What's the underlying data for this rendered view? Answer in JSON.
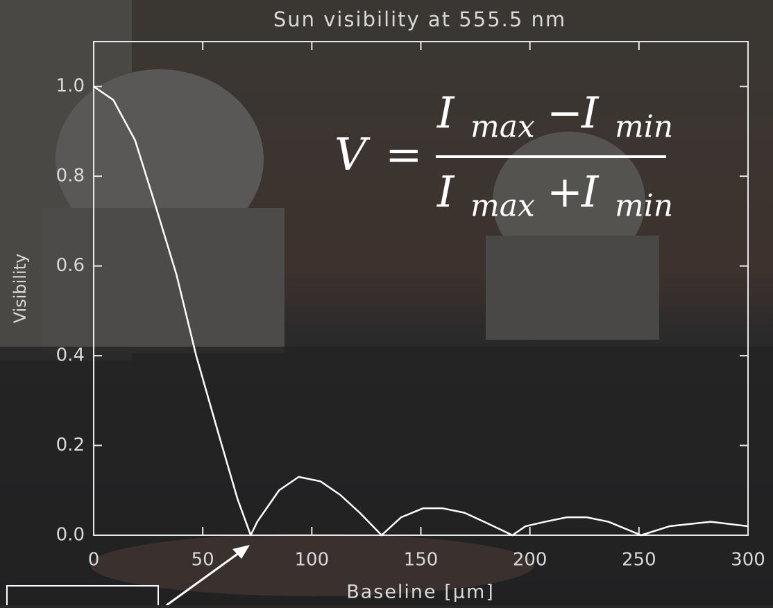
{
  "chart_data": {
    "type": "line",
    "title": "Sun visibility at 555.5 nm",
    "x_label": "Baseline [μm]",
    "y_label": "Visibility",
    "x": [
      0,
      9,
      19,
      28,
      38,
      47,
      57,
      66,
      72,
      75,
      85,
      94,
      104,
      113,
      122,
      132,
      141,
      151,
      160,
      170,
      179,
      192,
      198,
      207,
      217,
      226,
      236,
      251,
      264,
      283,
      300
    ],
    "series": [
      {
        "name": "Visibility",
        "color": "#ffffff",
        "values": [
          1.0,
          0.97,
          0.88,
          0.74,
          0.58,
          0.4,
          0.23,
          0.08,
          0.0,
          0.03,
          0.1,
          0.13,
          0.12,
          0.09,
          0.05,
          0.0,
          0.04,
          0.06,
          0.06,
          0.05,
          0.03,
          0.0,
          0.02,
          0.03,
          0.04,
          0.04,
          0.03,
          0.0,
          0.02,
          0.03,
          0.02
        ]
      }
    ],
    "xlim": [
      0,
      300
    ],
    "ylim": [
      0,
      1.1
    ],
    "xticks": [
      0,
      50,
      100,
      150,
      200,
      250,
      300
    ],
    "yticks": [
      {
        "value": 0,
        "label": "0.0"
      },
      0.2,
      0.4,
      0.6,
      0.8,
      {
        "value": 1,
        "label": "1.0"
      }
    ],
    "formula": {
      "lhs": "V",
      "equals": "=",
      "numerator": [
        "I",
        "max",
        "−",
        "I",
        "min"
      ],
      "denominator": [
        "I",
        "max",
        "+",
        "I",
        "min"
      ]
    }
  }
}
